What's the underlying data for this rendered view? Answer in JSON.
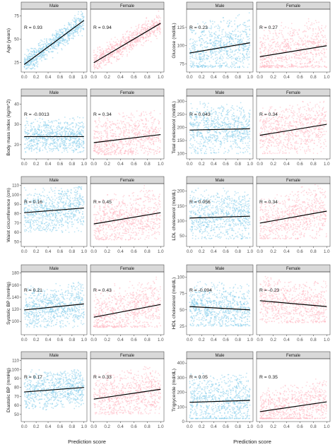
{
  "colors": {
    "male": "#87ceeb",
    "female": "#ffb6c1",
    "line": "#000000",
    "strip_fill": "#d9d9d9",
    "strip_border": "#333333",
    "panel_border": "#333333"
  },
  "chart_data": [
    {
      "type": "scatter",
      "ylabel": "Age (years)",
      "ylim": [
        15,
        82
      ],
      "yticks": [
        25,
        50,
        75
      ],
      "xlim": [
        -0.05,
        1.05
      ],
      "xticks": [
        0.0,
        0.2,
        0.4,
        0.6,
        0.8,
        1.0
      ],
      "xtick_labels": [
        "0.0",
        "0.2",
        "0.4",
        "0.6",
        "0.8",
        "1.0"
      ],
      "panels": [
        {
          "strip": "Male",
          "r_label": "R = 0.93",
          "line": [
            [
              0,
              23
            ],
            [
              1,
              70
            ]
          ],
          "cloud": {
            "y_min": 18,
            "y_max": 80,
            "trend": true
          }
        },
        {
          "strip": "Female",
          "r_label": "R = 0.94",
          "line": [
            [
              0,
              25
            ],
            [
              1,
              67
            ]
          ],
          "cloud": {
            "y_min": 18,
            "y_max": 80,
            "trend": true
          }
        }
      ]
    },
    {
      "type": "scatter",
      "ylabel": "Glucose (md/dL)",
      "ylim": [
        64,
        150
      ],
      "yticks": [
        75,
        100,
        125
      ],
      "xlim": [
        -0.05,
        1.05
      ],
      "xticks": [
        0.0,
        0.2,
        0.4,
        0.6,
        0.8,
        1.0
      ],
      "xtick_labels": [
        "0.0",
        "0.2",
        "0.4",
        "0.6",
        "0.8",
        "1.0"
      ],
      "panels": [
        {
          "strip": "Male",
          "r_label": "R = 0.23",
          "line": [
            [
              0,
              90
            ],
            [
              1,
              104
            ]
          ],
          "cloud": {
            "y_min": 70,
            "y_max": 148
          }
        },
        {
          "strip": "Female",
          "r_label": "R = 0.27",
          "line": [
            [
              0,
              85
            ],
            [
              1,
              100
            ]
          ],
          "cloud": {
            "y_min": 70,
            "y_max": 148
          }
        }
      ]
    },
    {
      "type": "scatter",
      "ylabel": "Body mass index (kg/m^2)",
      "ylim": [
        13,
        44
      ],
      "yticks": [
        20,
        30,
        40
      ],
      "xlim": [
        -0.05,
        1.05
      ],
      "xticks": [
        0.0,
        0.2,
        0.4,
        0.6,
        0.8,
        1.0
      ],
      "xtick_labels": [
        "0.0",
        "0.2",
        "0.4",
        "0.6",
        "0.8",
        "1.0"
      ],
      "panels": [
        {
          "strip": "Male",
          "r_label": "R = -0.0013",
          "line": [
            [
              0,
              24
            ],
            [
              1,
              24
            ]
          ],
          "cloud": {
            "y_min": 16,
            "y_max": 34
          }
        },
        {
          "strip": "Female",
          "r_label": "R = 0.34",
          "line": [
            [
              0,
              21
            ],
            [
              1,
              25
            ]
          ],
          "cloud": {
            "y_min": 15,
            "y_max": 40
          }
        }
      ]
    },
    {
      "type": "scatter",
      "ylabel": "Total cholesterol (md/dL)",
      "ylim": [
        80,
        320
      ],
      "yticks": [
        100,
        150,
        200,
        250,
        300
      ],
      "xlim": [
        -0.05,
        1.05
      ],
      "xticks": [
        0.0,
        0.2,
        0.4,
        0.6,
        0.8,
        1.0
      ],
      "xtick_labels": [
        "0.0",
        "0.2",
        "0.4",
        "0.6",
        "0.8",
        "1.0"
      ],
      "panels": [
        {
          "strip": "Male",
          "r_label": "R = 0.043",
          "line": [
            [
              0,
              190
            ],
            [
              1,
              195
            ]
          ],
          "cloud": {
            "y_min": 100,
            "y_max": 300
          }
        },
        {
          "strip": "Female",
          "r_label": "R = 0.34",
          "line": [
            [
              0,
              170
            ],
            [
              1,
              212
            ]
          ],
          "cloud": {
            "y_min": 100,
            "y_max": 300
          }
        }
      ]
    },
    {
      "type": "scatter",
      "ylabel": "Waist circumference (cm)",
      "ylim": [
        45,
        112
      ],
      "yticks": [
        50,
        60,
        70,
        80,
        90,
        100,
        110
      ],
      "xlim": [
        -0.05,
        1.05
      ],
      "xticks": [
        0.0,
        0.2,
        0.4,
        0.6,
        0.8,
        1.0
      ],
      "xtick_labels": [
        "0.0",
        "0.2",
        "0.4",
        "0.6",
        "0.8",
        "1.0"
      ],
      "panels": [
        {
          "strip": "Male",
          "r_label": "R = 0.16",
          "line": [
            [
              0,
              81
            ],
            [
              1,
              86
            ]
          ],
          "cloud": {
            "y_min": 60,
            "y_max": 110
          }
        },
        {
          "strip": "Female",
          "r_label": "R = 0.45",
          "line": [
            [
              0,
              69
            ],
            [
              1,
              81
            ]
          ],
          "cloud": {
            "y_min": 52,
            "y_max": 110
          }
        }
      ]
    },
    {
      "type": "scatter",
      "ylabel": "LDL cholesterol (md/dL)",
      "ylim": [
        15,
        225
      ],
      "yticks": [
        50,
        100,
        150,
        200
      ],
      "xlim": [
        -0.05,
        1.05
      ],
      "xticks": [
        0.0,
        0.2,
        0.4,
        0.6,
        0.8,
        1.0
      ],
      "xtick_labels": [
        "0.0",
        "0.2",
        "0.4",
        "0.6",
        "0.8",
        "1.0"
      ],
      "panels": [
        {
          "strip": "Male",
          "r_label": "R = 0.056",
          "line": [
            [
              0,
              110
            ],
            [
              1,
              116
            ]
          ],
          "cloud": {
            "y_min": 40,
            "y_max": 222
          }
        },
        {
          "strip": "Female",
          "r_label": "R = 0.34",
          "line": [
            [
              0,
              93
            ],
            [
              1,
              133
            ]
          ],
          "cloud": {
            "y_min": 40,
            "y_max": 222
          }
        }
      ]
    },
    {
      "type": "scatter",
      "ylabel": "Systolic BP (mmHg)",
      "ylim": [
        78,
        182
      ],
      "yticks": [
        100,
        120,
        140,
        160,
        180
      ],
      "xlim": [
        -0.05,
        1.05
      ],
      "xticks": [
        0.0,
        0.2,
        0.4,
        0.6,
        0.8,
        1.0
      ],
      "xtick_labels": [
        "0.0",
        "0.2",
        "0.4",
        "0.6",
        "0.8",
        "1.0"
      ],
      "panels": [
        {
          "strip": "Male",
          "r_label": "R = 0.21",
          "line": [
            [
              0,
              119
            ],
            [
              1,
              129
            ]
          ],
          "cloud": {
            "y_min": 90,
            "y_max": 165
          }
        },
        {
          "strip": "Female",
          "r_label": "R = 0.43",
          "line": [
            [
              0,
              107
            ],
            [
              1,
              128
            ]
          ],
          "cloud": {
            "y_min": 90,
            "y_max": 180
          }
        }
      ]
    },
    {
      "type": "scatter",
      "ylabel": "HDL cholesterol (md/dL)",
      "ylim": [
        12,
        108
      ],
      "yticks": [
        25,
        50,
        75,
        100
      ],
      "xlim": [
        -0.05,
        1.05
      ],
      "xticks": [
        0.0,
        0.2,
        0.4,
        0.6,
        0.8,
        1.0
      ],
      "xtick_labels": [
        "0.0",
        "0.2",
        "0.4",
        "0.6",
        "0.8",
        "1.0"
      ],
      "panels": [
        {
          "strip": "Male",
          "r_label": "R = -0.094",
          "line": [
            [
              0,
              55
            ],
            [
              1,
              50
            ]
          ],
          "cloud": {
            "y_min": 25,
            "y_max": 100
          }
        },
        {
          "strip": "Female",
          "r_label": "R = -0.23",
          "line": [
            [
              0,
              64
            ],
            [
              1,
              55
            ]
          ],
          "cloud": {
            "y_min": 30,
            "y_max": 105
          }
        }
      ]
    },
    {
      "type": "scatter",
      "ylabel": "Diastolic BP (mmHg)",
      "ylim": [
        42,
        112
      ],
      "yticks": [
        50,
        60,
        70,
        80,
        90,
        100,
        110
      ],
      "xlim": [
        -0.05,
        1.05
      ],
      "xticks": [
        0.0,
        0.2,
        0.4,
        0.6,
        0.8,
        1.0
      ],
      "xtick_labels": [
        "0.0",
        "0.2",
        "0.4",
        "0.6",
        "0.8",
        "1.0"
      ],
      "panels": [
        {
          "strip": "Male",
          "r_label": "R = 0.17",
          "line": [
            [
              0,
              75
            ],
            [
              1,
              80
            ]
          ],
          "cloud": {
            "y_min": 55,
            "y_max": 100
          }
        },
        {
          "strip": "Female",
          "r_label": "R = 0.33",
          "line": [
            [
              0,
              67
            ],
            [
              1,
              78
            ]
          ],
          "cloud": {
            "y_min": 50,
            "y_max": 105
          }
        }
      ]
    },
    {
      "type": "scatter",
      "ylabel": "Trigryceride (md/dL)",
      "ylim": [
        0,
        430
      ],
      "yticks": [
        0,
        100,
        200,
        300,
        400
      ],
      "xlim": [
        -0.05,
        1.05
      ],
      "xticks": [
        0.0,
        0.2,
        0.4,
        0.6,
        0.8,
        1.0
      ],
      "xtick_labels": [
        "0.0",
        "0.2",
        "0.4",
        "0.6",
        "0.8",
        "1.0"
      ],
      "panels": [
        {
          "strip": "Male",
          "r_label": "R = 0.05",
          "line": [
            [
              0,
              132
            ],
            [
              1,
              145
            ]
          ],
          "cloud": {
            "y_min": 20,
            "y_max": 400
          }
        },
        {
          "strip": "Female",
          "r_label": "R = 0.35",
          "line": [
            [
              0,
              68
            ],
            [
              1,
              135
            ]
          ],
          "cloud": {
            "y_min": 20,
            "y_max": 330
          }
        }
      ]
    }
  ],
  "x_axis_title_left": "Prediction score",
  "x_axis_title_right": "Prediction score"
}
